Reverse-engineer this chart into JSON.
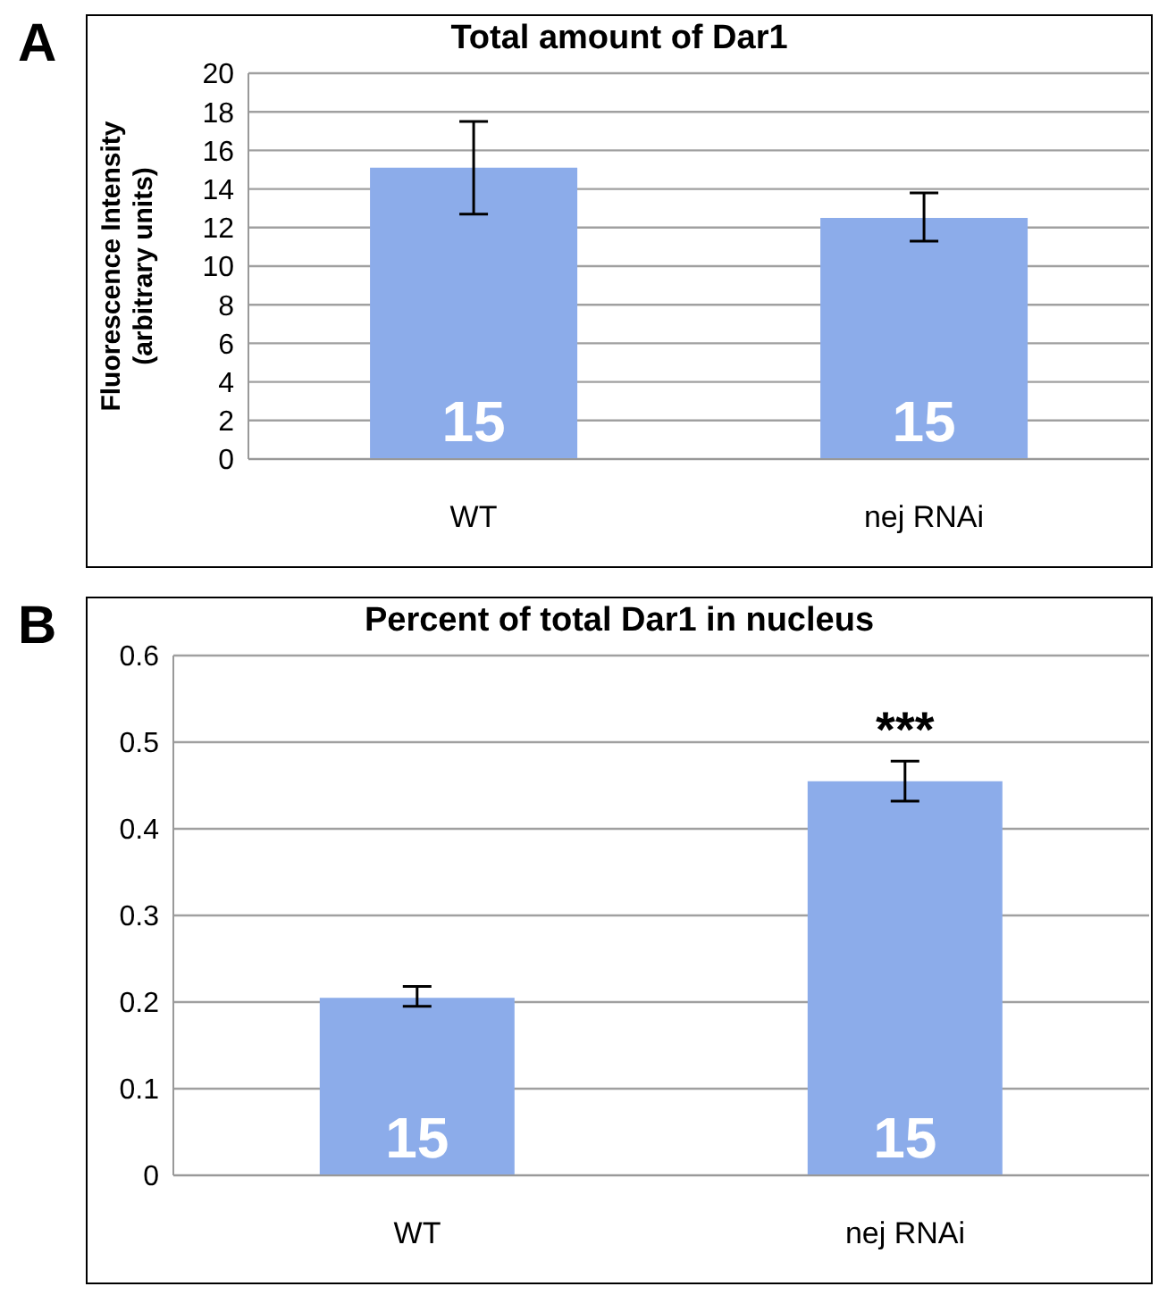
{
  "chart_data": [
    {
      "type": "bar",
      "title": "Total amount of Dar1",
      "ylabel": "Fluorescence Intensity (arbitrary units)",
      "categories": [
        "WT",
        "nej RNAi"
      ],
      "values": [
        15.1,
        12.5
      ],
      "errors": [
        [
          12.7,
          17.5
        ],
        [
          11.3,
          13.8
        ]
      ],
      "color": "#8cacea",
      "ylim": [
        0,
        20
      ],
      "yticks": [
        0,
        2,
        4,
        6,
        8,
        10,
        12,
        14,
        16,
        18,
        20
      ],
      "grid": "y",
      "annotations": [
        "A",
        "15",
        "15"
      ]
    },
    {
      "type": "bar",
      "title": "Percent of total Dar1 in nucleus",
      "categories": [
        "WT",
        "nej RNAi"
      ],
      "values": [
        0.205,
        0.455
      ],
      "errors": [
        [
          0.195,
          0.218
        ],
        [
          0.432,
          0.478
        ]
      ],
      "color": "#8cacea",
      "ylim": [
        0,
        0.6
      ],
      "yticks": [
        0,
        0.1,
        0.2,
        0.3,
        0.4,
        0.5,
        0.6
      ],
      "grid": "y",
      "annotations": [
        "B",
        "15",
        "15",
        "***"
      ]
    }
  ]
}
